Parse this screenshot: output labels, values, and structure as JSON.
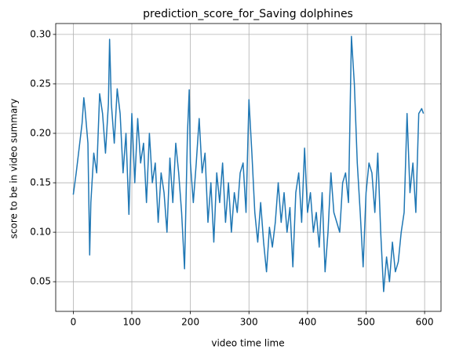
{
  "chart_data": {
    "type": "line",
    "title": "prediction_score_for_Saving dolphines",
    "xlabel": "video time lime",
    "ylabel": "score to be in video summary",
    "x": [
      0,
      5,
      10,
      15,
      18,
      20,
      25,
      28,
      30,
      35,
      40,
      45,
      50,
      55,
      60,
      62,
      65,
      70,
      75,
      80,
      85,
      90,
      95,
      100,
      105,
      110,
      115,
      120,
      125,
      130,
      135,
      140,
      145,
      150,
      155,
      160,
      165,
      170,
      175,
      180,
      185,
      190,
      195,
      198,
      200,
      205,
      210,
      215,
      220,
      225,
      230,
      235,
      240,
      245,
      250,
      255,
      260,
      265,
      270,
      275,
      280,
      285,
      290,
      295,
      300,
      305,
      310,
      315,
      320,
      325,
      330,
      335,
      340,
      345,
      350,
      355,
      360,
      365,
      370,
      375,
      380,
      385,
      390,
      395,
      400,
      405,
      410,
      415,
      420,
      425,
      430,
      435,
      440,
      445,
      450,
      455,
      460,
      465,
      470,
      475,
      480,
      485,
      490,
      495,
      500,
      505,
      510,
      515,
      520,
      525,
      530,
      535,
      540,
      545,
      550,
      555,
      560,
      565,
      570,
      575,
      580,
      585,
      590,
      595,
      598
    ],
    "series": [
      {
        "name": "score",
        "color": "#1f77b4",
        "values": [
          0.138,
          0.16,
          0.185,
          0.21,
          0.236,
          0.225,
          0.19,
          0.077,
          0.13,
          0.18,
          0.16,
          0.24,
          0.22,
          0.18,
          0.23,
          0.295,
          0.23,
          0.19,
          0.245,
          0.22,
          0.16,
          0.2,
          0.118,
          0.22,
          0.15,
          0.215,
          0.17,
          0.19,
          0.13,
          0.2,
          0.15,
          0.17,
          0.11,
          0.16,
          0.14,
          0.1,
          0.175,
          0.13,
          0.19,
          0.16,
          0.12,
          0.063,
          0.2,
          0.244,
          0.17,
          0.13,
          0.17,
          0.215,
          0.16,
          0.18,
          0.11,
          0.15,
          0.09,
          0.16,
          0.13,
          0.17,
          0.11,
          0.15,
          0.1,
          0.14,
          0.12,
          0.16,
          0.17,
          0.12,
          0.234,
          0.18,
          0.12,
          0.09,
          0.13,
          0.09,
          0.06,
          0.105,
          0.085,
          0.11,
          0.15,
          0.11,
          0.14,
          0.1,
          0.125,
          0.065,
          0.14,
          0.16,
          0.11,
          0.185,
          0.12,
          0.14,
          0.1,
          0.12,
          0.085,
          0.14,
          0.06,
          0.1,
          0.16,
          0.12,
          0.11,
          0.1,
          0.15,
          0.16,
          0.13,
          0.298,
          0.25,
          0.17,
          0.12,
          0.065,
          0.14,
          0.17,
          0.16,
          0.12,
          0.18,
          0.1,
          0.04,
          0.075,
          0.05,
          0.09,
          0.06,
          0.07,
          0.1,
          0.12,
          0.22,
          0.14,
          0.17,
          0.12,
          0.22,
          0.225,
          0.22
        ]
      }
    ],
    "xlim": [
      -30,
      628
    ],
    "ylim": [
      0.02,
      0.311
    ],
    "xticks": [
      0,
      100,
      200,
      300,
      400,
      500,
      600
    ],
    "yticks": [
      0.05,
      {
        "value": 0.1,
        "label": "0.10"
      },
      0.15,
      {
        "value": 0.2,
        "label": "0.20"
      },
      0.25,
      {
        "value": 0.3,
        "label": "0.30"
      }
    ],
    "grid": true
  }
}
